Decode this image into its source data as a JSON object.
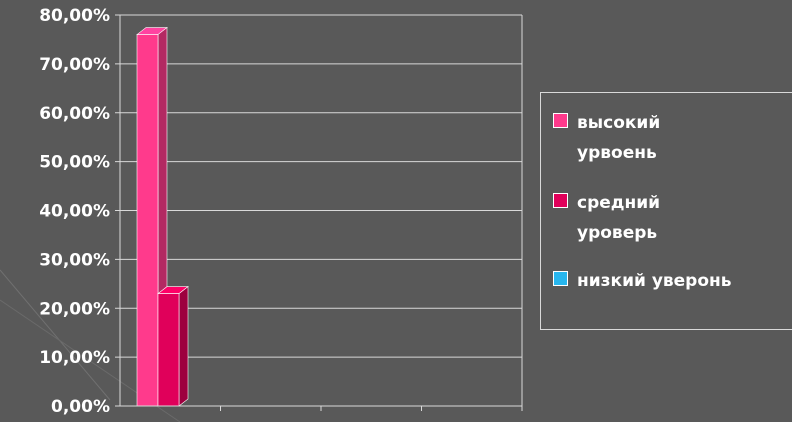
{
  "chart_data": {
    "type": "bar",
    "categories": [
      ""
    ],
    "series": [
      {
        "name": "высокий\nурвоень",
        "values": [
          76.0
        ],
        "color": "#ff3a8c"
      },
      {
        "name": "средний\nуроверь",
        "values": [
          23.0
        ],
        "color": "#e0005a"
      },
      {
        "name": "низкий уверонь",
        "values": [
          0.0
        ],
        "color": "#27b6ee"
      }
    ],
    "ylim": [
      0,
      80
    ],
    "yticks": [
      "0,00%",
      "10,00%",
      "20,00%",
      "30,00%",
      "40,00%",
      "50,00%",
      "60,00%",
      "70,00%",
      "80,00%"
    ],
    "grid": true,
    "legend": "right",
    "style": "3d-columns"
  },
  "colors": {
    "background": "#595959",
    "plot_border": "#d9d9d9",
    "text": "#ffffff"
  }
}
